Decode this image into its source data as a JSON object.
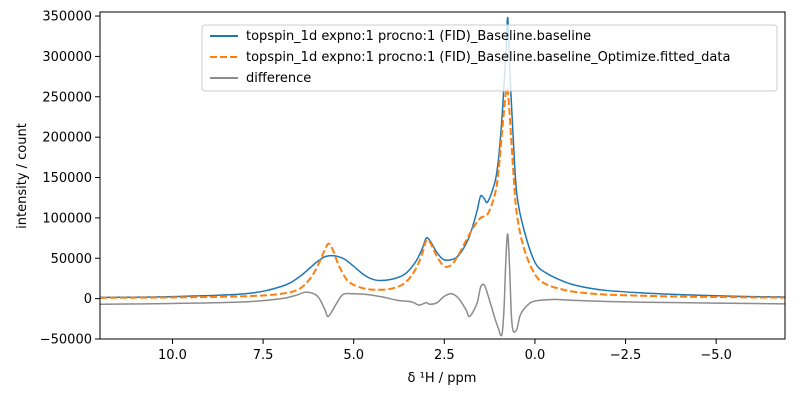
{
  "chart_data": {
    "type": "line",
    "title": "",
    "xlabel": "δ ¹H / ppm",
    "ylabel": "intensity / count",
    "xlim": [
      12.0,
      -6.9
    ],
    "ylim": [
      -50000,
      355000
    ],
    "x_ticks": [
      10.0,
      7.5,
      5.0,
      2.5,
      0.0,
      -2.5,
      -5.0
    ],
    "x_tick_labels": [
      "10.0",
      "7.5",
      "5.0",
      "2.5",
      "0.0",
      "−2.5",
      "−5.0"
    ],
    "y_ticks": [
      -50000,
      0,
      50000,
      100000,
      150000,
      200000,
      250000,
      300000,
      350000
    ],
    "y_tick_labels": [
      "−50000",
      "0",
      "50000",
      "100000",
      "150000",
      "200000",
      "250000",
      "300000",
      "350000"
    ],
    "grid": false,
    "legend_position": "top-right",
    "series": [
      {
        "name": "topspin_1d expno:1 procno:1 (FID)_Baseline.baseline",
        "color": "#1f77b4",
        "dash": "solid",
        "x": [
          12.0,
          10.0,
          8.0,
          7.0,
          6.5,
          6.0,
          5.7,
          5.3,
          5.0,
          4.7,
          4.4,
          4.0,
          3.6,
          3.3,
          3.1,
          3.0,
          2.9,
          2.7,
          2.5,
          2.2,
          2.0,
          1.8,
          1.6,
          1.5,
          1.4,
          1.3,
          1.1,
          1.0,
          0.9,
          0.8,
          0.75,
          0.7,
          0.6,
          0.5,
          0.3,
          0.0,
          -0.3,
          -0.7,
          -1.0,
          -1.5,
          -2.0,
          -3.0,
          -4.0,
          -5.0,
          -6.0,
          -6.9
        ],
        "y": [
          1500,
          2500,
          6000,
          15000,
          27000,
          46000,
          53000,
          50000,
          40000,
          29000,
          23000,
          23500,
          30000,
          45000,
          63000,
          75000,
          72000,
          57000,
          48000,
          50000,
          60000,
          78000,
          108000,
          127000,
          124000,
          120000,
          145000,
          175000,
          230000,
          305000,
          348000,
          290000,
          200000,
          130000,
          85000,
          45000,
          32000,
          23000,
          18000,
          13000,
          10000,
          7000,
          5000,
          3500,
          2500,
          2000
        ]
      },
      {
        "name": "topspin_1d expno:1 procno:1 (FID)_Baseline.baseline_Optimize.fitted_data",
        "color": "#ff7f0e",
        "dash": "dashed",
        "x": [
          12.0,
          10.0,
          8.0,
          7.0,
          6.5,
          6.2,
          6.0,
          5.8,
          5.7,
          5.6,
          5.4,
          5.2,
          5.0,
          4.7,
          4.4,
          4.0,
          3.6,
          3.3,
          3.1,
          3.0,
          2.9,
          2.7,
          2.5,
          2.3,
          2.1,
          1.9,
          1.7,
          1.5,
          1.3,
          1.1,
          1.0,
          0.9,
          0.8,
          0.75,
          0.7,
          0.6,
          0.5,
          0.3,
          0.0,
          -0.3,
          -0.7,
          -1.0,
          -1.5,
          -2.0,
          -3.0,
          -4.0,
          -5.0,
          -6.0,
          -6.9
        ],
        "y": [
          1000,
          1500,
          3000,
          6000,
          12000,
          25000,
          40000,
          60000,
          68000,
          63000,
          40000,
          24000,
          17000,
          12500,
          11000,
          12000,
          19000,
          36000,
          57000,
          72000,
          70000,
          52000,
          40000,
          42000,
          55000,
          72000,
          88000,
          100000,
          105000,
          130000,
          160000,
          210000,
          255000,
          258000,
          230000,
          160000,
          105000,
          62000,
          30000,
          18000,
          12000,
          9000,
          6500,
          5000,
          3500,
          2500,
          2000,
          1500,
          1200
        ]
      },
      {
        "name": "difference",
        "color": "#8c8c8c",
        "dash": "solid",
        "x": [
          12.0,
          10.0,
          8.0,
          7.0,
          6.6,
          6.3,
          6.0,
          5.8,
          5.7,
          5.5,
          5.3,
          5.0,
          4.6,
          4.2,
          3.8,
          3.4,
          3.2,
          3.0,
          2.9,
          2.7,
          2.5,
          2.3,
          2.1,
          1.9,
          1.8,
          1.6,
          1.5,
          1.4,
          1.3,
          1.1,
          1.0,
          0.95,
          0.9,
          0.85,
          0.8,
          0.75,
          0.7,
          0.65,
          0.6,
          0.5,
          0.4,
          0.2,
          0.0,
          -0.5,
          -1.0,
          -2.0,
          -3.0,
          -4.0,
          -5.0,
          -6.0,
          -6.9
        ],
        "y": [
          -7000,
          -6000,
          -4000,
          0,
          4000,
          8000,
          3000,
          -13000,
          -22000,
          -8000,
          5000,
          6000,
          5000,
          2000,
          -2000,
          -4000,
          -8000,
          -5000,
          -7000,
          -5000,
          3000,
          6000,
          0,
          -14000,
          -22000,
          -6000,
          14000,
          17000,
          5000,
          -25000,
          -38000,
          -45000,
          -42000,
          -10000,
          50000,
          80000,
          40000,
          -20000,
          -40000,
          -38000,
          -20000,
          -8000,
          -3000,
          -1000,
          -2000,
          -3500,
          -4500,
          -5000,
          -5500,
          -6000,
          -6500
        ]
      }
    ]
  }
}
